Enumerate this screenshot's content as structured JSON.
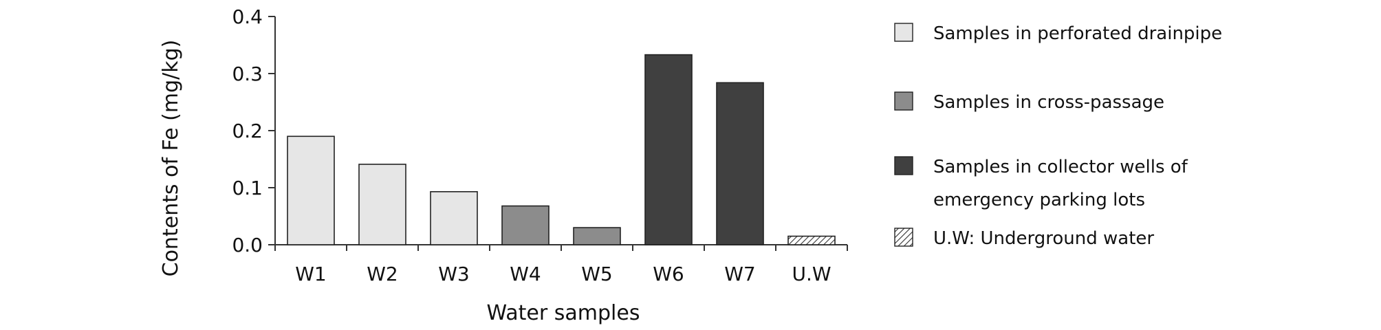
{
  "chart_data": {
    "type": "bar",
    "title": "",
    "xlabel": "Water samples",
    "ylabel": "Contents of Fe (mg/kg)",
    "ylim": [
      0,
      0.4
    ],
    "yticks": [
      "0.0",
      "0.1",
      "0.2",
      "0.3",
      "0.4"
    ],
    "yticks_values": [
      0,
      0.1,
      0.2,
      0.3,
      0.4
    ],
    "grid": false,
    "legend_position": "right",
    "categories": [
      "W1",
      "W2",
      "W3",
      "W4",
      "W5",
      "W6",
      "W7",
      "U.W"
    ],
    "values": [
      0.19,
      0.141,
      0.093,
      0.068,
      0.03,
      0.333,
      0.284,
      0.015
    ],
    "groups": [
      0,
      0,
      0,
      1,
      1,
      2,
      2,
      3
    ],
    "legend": [
      {
        "lines": [
          "Samples in perforated drainpipe"
        ],
        "color": "#e6e6e6",
        "pattern": "none"
      },
      {
        "lines": [
          "Samples in cross-passage"
        ],
        "color": "#8c8c8c",
        "pattern": "none"
      },
      {
        "lines": [
          "Samples in collector wells of",
          "emergency parking lots"
        ],
        "color": "#404040",
        "pattern": "none"
      },
      {
        "lines": [
          "U.W: Underground water"
        ],
        "color": "#ffffff",
        "pattern": "hatch"
      }
    ]
  }
}
